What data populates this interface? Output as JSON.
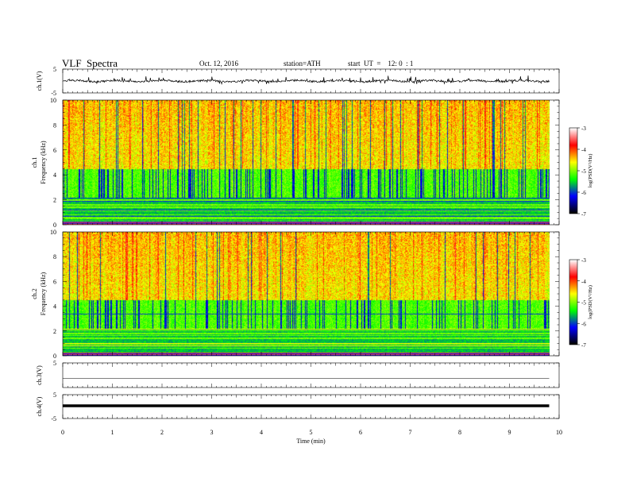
{
  "header": {
    "title": "VLF  Spectra",
    "date": "Oct. 12, 2016",
    "station": "station=ATH",
    "start": "start  UT  =    12: 0  : 1"
  },
  "chart_data": [
    {
      "type": "line",
      "panel": "ch1-waveform",
      "ylabel": "ch.1(V)",
      "ylim": [
        -5,
        5
      ],
      "yticks": [
        5,
        -5
      ],
      "xlim": [
        0,
        10
      ],
      "x_data_end": 9.8,
      "baseline": 0,
      "color": "#000000"
    },
    {
      "type": "heatmap",
      "panel": "ch1-spectrogram",
      "ylabel": [
        "ch.1",
        "Frequency  (kHz)"
      ],
      "ylim": [
        0,
        10
      ],
      "yticks": [
        0,
        2,
        4,
        6,
        8,
        10
      ],
      "xlim": [
        0,
        10
      ],
      "x_data_end": 9.8
    },
    {
      "type": "heatmap",
      "panel": "ch2-spectrogram",
      "ylabel": [
        "ch.2",
        "Frequency  (kHz)"
      ],
      "ylim": [
        0,
        10
      ],
      "yticks": [
        0,
        2,
        4,
        6,
        8,
        10
      ],
      "xlim": [
        0,
        10
      ],
      "x_data_end": 9.8
    },
    {
      "type": "line",
      "panel": "ch3-waveform",
      "ylabel": "ch.3(V)",
      "ylim": [
        -5,
        5
      ],
      "yticks": [
        5
      ],
      "xlim": [
        0,
        10
      ],
      "x_data_end": 9.8,
      "baseline": 0
    },
    {
      "type": "line",
      "panel": "ch4-waveform",
      "ylabel": "ch.4(V)",
      "ylim": [
        -5,
        5
      ],
      "yticks": [
        5,
        -5
      ],
      "xlim": [
        0,
        10
      ],
      "x_data_end": 9.8,
      "baseline": 0
    }
  ],
  "x_axis": {
    "label": "Time  (min)",
    "ticks": [
      0,
      1,
      2,
      3,
      4,
      5,
      6,
      7,
      8,
      9,
      10
    ]
  },
  "colorbar": {
    "range": [
      -7,
      -3
    ],
    "ticks": [
      -3,
      -4,
      -5,
      -6,
      -7
    ],
    "label": "log(PSD(V²/Hz)",
    "colors": [
      "#000000",
      "#0000ff",
      "#00ff00",
      "#ffff00",
      "#ff0000",
      "#ffffff"
    ]
  }
}
